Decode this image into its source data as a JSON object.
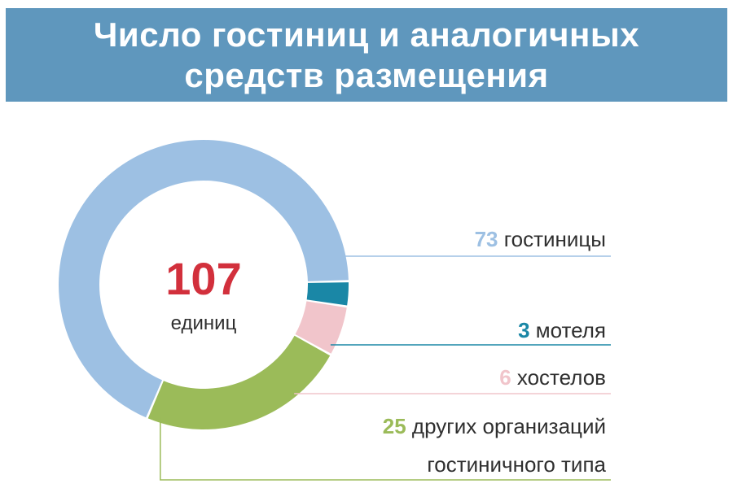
{
  "title": {
    "line1": "Число гостиниц и аналогичных",
    "line2": "средств размещения"
  },
  "colors": {
    "banner": "#5f97bd",
    "hotels": "#9dc0e3",
    "motels": "#1a87a6",
    "hostels": "#f1c5cb",
    "other": "#9bbb59",
    "total": "#d2303c"
  },
  "chart_data": {
    "type": "pie",
    "variant": "donut",
    "total": 107,
    "total_label": "единиц",
    "slices": [
      {
        "value": 73,
        "label": "гостиницы",
        "label_line2": "",
        "color": "#9dc0e3"
      },
      {
        "value": 3,
        "label": "мотеля",
        "label_line2": "",
        "color": "#1a87a6"
      },
      {
        "value": 6,
        "label": "хостелов",
        "label_line2": "",
        "color": "#f1c5cb"
      },
      {
        "value": 25,
        "label": "других организаций",
        "label_line2": "гостиничного типа",
        "color": "#9bbb59"
      }
    ]
  }
}
